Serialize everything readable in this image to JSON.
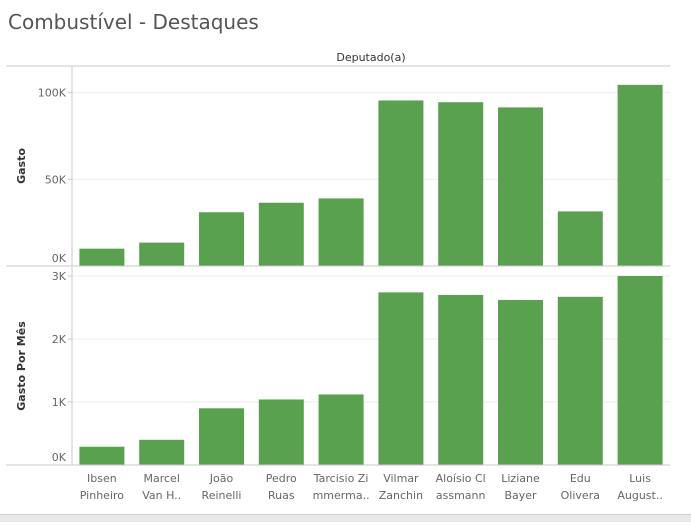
{
  "title": "Combustível - Destaques",
  "colors": {
    "bar": "#59a14f",
    "grid": "#eeeeee",
    "axis": "#c8c8c8",
    "text": "#666666",
    "header_text": "#333333"
  },
  "chart_data": {
    "type": "bar",
    "column_header": "Deputado(a)",
    "categories": [
      [
        "Ibsen",
        "Pinheiro"
      ],
      [
        "Marcel",
        "Van H.."
      ],
      [
        "João",
        "Reinelli"
      ],
      [
        "Pedro",
        "Ruas"
      ],
      [
        "Tarcisio Zi",
        "mmerma.."
      ],
      [
        "Vilmar",
        "Zanchin"
      ],
      [
        "Aloísio Cl",
        "assmann"
      ],
      [
        "Liziane",
        "Bayer"
      ],
      [
        "Edu",
        "Olivera"
      ],
      [
        "Luis",
        "August.."
      ]
    ],
    "panels": [
      {
        "ylabel": "Gasto",
        "ylim": [
          0,
          105000
        ],
        "ticks": [
          0,
          50000,
          100000
        ],
        "tick_labels": [
          "0K",
          "50K",
          "100K"
        ],
        "values": [
          10000,
          13500,
          31000,
          36500,
          39000,
          95500,
          94500,
          91500,
          31500,
          104500
        ]
      },
      {
        "ylabel": "Gasto Por Mês",
        "ylim": [
          0,
          3000
        ],
        "ticks": [
          0,
          1000,
          2000,
          3000
        ],
        "tick_labels": [
          "0K",
          "1K",
          "2K",
          "3K"
        ],
        "values": [
          290,
          400,
          900,
          1040,
          1120,
          2740,
          2700,
          2620,
          2670,
          3000
        ]
      }
    ]
  }
}
